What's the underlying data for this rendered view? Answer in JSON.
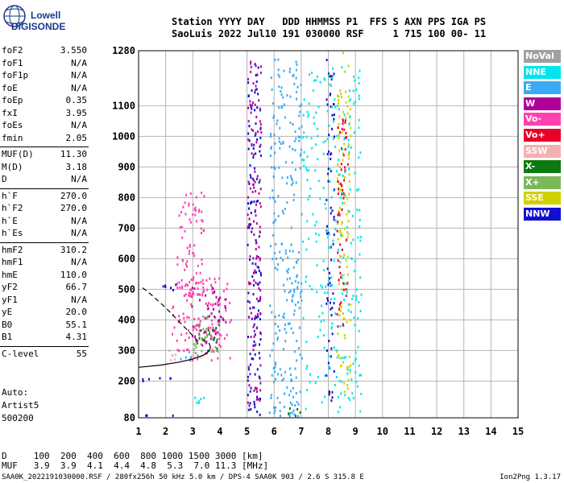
{
  "logo": {
    "line1": "Lowell",
    "line2": "DIGISONDE"
  },
  "header": {
    "line1": "Station YYYY DAY   DDD HHMMSS P1  FFS S AXN PPS IGA PS",
    "line2": "SaoLuis 2022 Jul10 191 030000 RSF     1 715 100 00- 11"
  },
  "params": [
    {
      "name": "foF2",
      "value": "3.550"
    },
    {
      "name": "foF1",
      "value": "N/A"
    },
    {
      "name": "foF1p",
      "value": "N/A"
    },
    {
      "name": "foE",
      "value": "N/A"
    },
    {
      "name": "foEp",
      "value": "0.35"
    },
    {
      "name": "fxI",
      "value": "3.95"
    },
    {
      "name": "foEs",
      "value": "N/A"
    },
    {
      "name": "fmin",
      "value": "2.05"
    },
    {
      "sep": true
    },
    {
      "name": "MUF(D)",
      "value": "11.30"
    },
    {
      "name": "M(D)",
      "value": "3.18"
    },
    {
      "name": "D",
      "value": "N/A"
    },
    {
      "sep": true
    },
    {
      "name": "h`F",
      "value": "270.0"
    },
    {
      "name": "h`F2",
      "value": "270.0"
    },
    {
      "name": "h`E",
      "value": "N/A"
    },
    {
      "name": "h`Es",
      "value": "N/A"
    },
    {
      "sep": true
    },
    {
      "name": "hmF2",
      "value": "310.2"
    },
    {
      "name": "hmF1",
      "value": "N/A"
    },
    {
      "name": "hmE",
      "value": "110.0"
    },
    {
      "name": "yF2",
      "value": "66.7"
    },
    {
      "name": "yF1",
      "value": "N/A"
    },
    {
      "name": "yE",
      "value": "20.0"
    },
    {
      "name": "B0",
      "value": "55.1"
    },
    {
      "name": "B1",
      "value": "4.31"
    },
    {
      "sep": true
    },
    {
      "name": "C-level",
      "value": "55"
    }
  ],
  "auto": {
    "line1": "Auto:",
    "line2": "Artist5",
    "line3": "500200"
  },
  "legend": [
    {
      "label": "NoVal",
      "color": "#a0a0a0"
    },
    {
      "label": "NNE",
      "color": "#00e5ee"
    },
    {
      "label": "E",
      "color": "#3aaaf5"
    },
    {
      "label": "W",
      "color": "#b0009a"
    },
    {
      "label": "Vo-",
      "color": "#ff40b0"
    },
    {
      "label": "Vo+",
      "color": "#e8002a"
    },
    {
      "label": "SSW",
      "color": "#f4b0b0"
    },
    {
      "label": "X-",
      "color": "#0c7a0c"
    },
    {
      "label": "X+",
      "color": "#7ab85a"
    },
    {
      "label": "SSE",
      "color": "#d0d000"
    },
    {
      "label": "NNW",
      "color": "#1010d0"
    }
  ],
  "dmuf": {
    "line1": "D     100  200  400  600  800 1000 1500 3000 [km]",
    "line2": "MUF   3.9  3.9  4.1  4.4  4.8  5.3  7.0 11.3 [MHz]"
  },
  "footer": {
    "left": "SAA0K_2022191030000.RSF / 280fx256h 50 kHz 5.0 km / DPS-4 SAA0K 903 / 2.6 S 315.8 E",
    "right": "Ion2Png 1.3.17"
  },
  "chart_data": {
    "type": "scatter",
    "xlim": [
      1,
      15
    ],
    "ylim": [
      80,
      1280
    ],
    "xticks": [
      1,
      2,
      3,
      4,
      5,
      6,
      7,
      8,
      9,
      10,
      11,
      12,
      13,
      14,
      15
    ],
    "yticks": [
      80,
      200,
      300,
      400,
      500,
      600,
      700,
      800,
      900,
      1000,
      1100,
      1280
    ],
    "grid": true,
    "legend_position": "right",
    "traces": [
      {
        "name": "profile-curve",
        "style": "solid",
        "points": [
          [
            1.0,
            245
          ],
          [
            1.8,
            252
          ],
          [
            2.5,
            262
          ],
          [
            3.0,
            272
          ],
          [
            3.4,
            285
          ],
          [
            3.6,
            298
          ],
          [
            3.65,
            310
          ],
          [
            3.6,
            325
          ]
        ]
      },
      {
        "name": "profile-extrapolation",
        "style": "dashed",
        "points": [
          [
            3.2,
            330
          ],
          [
            2.6,
            385
          ],
          [
            2.0,
            440
          ],
          [
            1.5,
            480
          ],
          [
            1.05,
            512
          ]
        ]
      }
    ],
    "echo_regions": [
      {
        "f": [
          2.2,
          4.4
        ],
        "h": [
          270,
          540
        ],
        "color": "#ff40b0"
      },
      {
        "f": [
          2.9,
          4.2
        ],
        "h": [
          320,
          510
        ],
        "color": "#b0009a"
      },
      {
        "f": [
          3.0,
          4.0
        ],
        "h": [
          290,
          420
        ],
        "color": "#7ab85a"
      },
      {
        "f": [
          3.1,
          3.9
        ],
        "h": [
          300,
          380
        ],
        "color": "#0c7a0c"
      },
      {
        "f": [
          1.9,
          3.4
        ],
        "h": [
          272,
          310
        ],
        "color": "#f4b0b0"
      },
      {
        "f": [
          2.0,
          3.2
        ],
        "h": [
          275,
          300
        ],
        "color": "#3aaaf5"
      },
      {
        "f": [
          2.4,
          3.4
        ],
        "h": [
          480,
          820
        ],
        "color": "#ff40b0"
      },
      {
        "f": [
          1.8,
          2.4
        ],
        "h": [
          500,
          520
        ],
        "color": "#1010d0"
      },
      {
        "f": [
          5.0,
          5.5
        ],
        "h": [
          80,
          1280
        ],
        "color": "#1010d0"
      },
      {
        "f": [
          5.0,
          5.5
        ],
        "h": [
          80,
          1280
        ],
        "color": "#b0009a"
      },
      {
        "f": [
          5.8,
          7.0
        ],
        "h": [
          80,
          1260
        ],
        "color": "#3aaaf5"
      },
      {
        "f": [
          7.9,
          8.2
        ],
        "h": [
          120,
          1270
        ],
        "color": "#1010d0"
      },
      {
        "f": [
          8.3,
          8.8
        ],
        "h": [
          150,
          1280
        ],
        "color": "#d0d000"
      },
      {
        "f": [
          8.3,
          8.7
        ],
        "h": [
          380,
          1060
        ],
        "color": "#e8002a"
      },
      {
        "f": [
          7.0,
          9.2
        ],
        "h": [
          100,
          1230
        ],
        "color": "#00e5ee"
      },
      {
        "f": [
          1.1,
          2.4
        ],
        "h": [
          80,
          92
        ],
        "color": "#1010d0"
      },
      {
        "f": [
          1.1,
          2.2
        ],
        "h": [
          200,
          215
        ],
        "color": "#1010d0"
      },
      {
        "f": [
          2.8,
          3.4
        ],
        "h": [
          130,
          150
        ],
        "color": "#00e5ee"
      },
      {
        "f": [
          6.5,
          7.0
        ],
        "h": [
          80,
          120
        ],
        "color": "#0c7a0c"
      }
    ]
  }
}
